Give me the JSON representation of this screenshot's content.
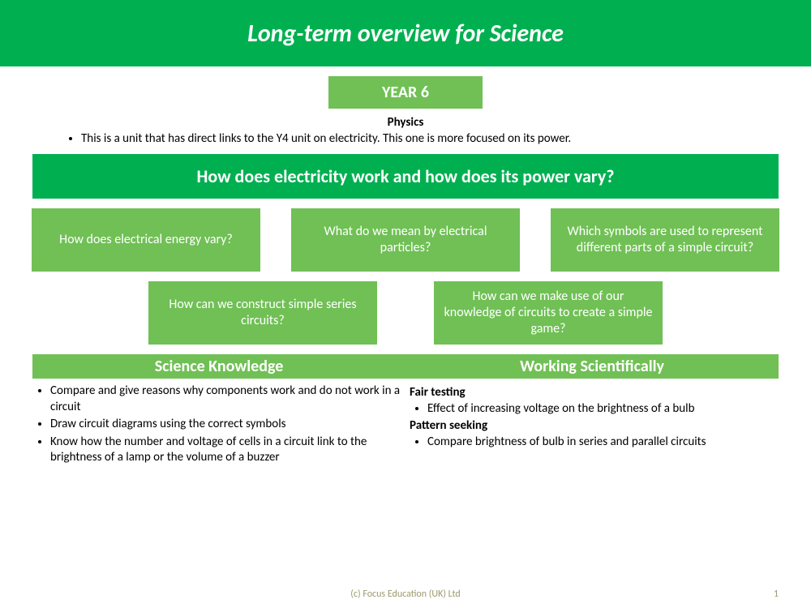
{
  "header": {
    "title": "Long-term overview for Science"
  },
  "year_badge": "YEAR 6",
  "subject": "Physics",
  "intro_bullet": "This is a unit that has direct links to the Y4 unit on electricity. This one is more focused on its power.",
  "main_question": "How does electricity work and how does its power vary?",
  "sub_questions_row1": [
    "How does electrical energy vary?",
    "What do we mean by electrical particles?",
    "Which symbols are used to represent different parts of a simple circuit?"
  ],
  "sub_questions_row2": [
    "How can we construct simple series circuits?",
    "How can we make use of our knowledge of circuits to create a simple game?"
  ],
  "columns": {
    "left": {
      "heading": "Science Knowledge",
      "bullets": [
        "Compare and give reasons why components work and do not work in a circuit",
        "Draw circuit diagrams using the correct symbols",
        "Know how the number and voltage of cells in a circuit link to the brightness of a lamp or the volume of a buzzer"
      ]
    },
    "right": {
      "heading": "Working Scientifically",
      "sections": [
        {
          "subhead": "Fair testing",
          "bullet": "Effect of increasing voltage on the brightness of a bulb"
        },
        {
          "subhead": "Pattern seeking",
          "bullet": "Compare brightness of bulb in series and parallel circuits"
        }
      ]
    }
  },
  "footer": "(c) Focus Education (UK) Ltd",
  "page_number": "1",
  "colors": {
    "primary_green": "#00b050",
    "light_green": "#70c055",
    "white": "#ffffff",
    "footer_text": "#9a9a6e"
  }
}
